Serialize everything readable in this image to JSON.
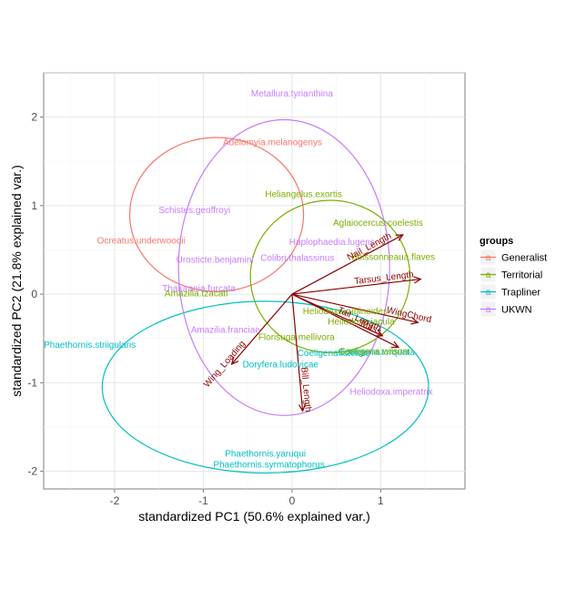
{
  "chart_data": {
    "type": "scatter",
    "subtype": "pca-biplot",
    "title": "",
    "xlabel": "standardized PC1 (50.6% explained var.)",
    "ylabel": "standardized PC2 (21.8% explained var.)",
    "xlim": [
      -2.8,
      1.95
    ],
    "ylim": [
      -2.2,
      2.5
    ],
    "xticks": [
      -2,
      -1,
      0,
      1
    ],
    "yticks": [
      -2,
      -1,
      0,
      1,
      2
    ],
    "grid": true,
    "legend": {
      "title": "groups",
      "position": "right"
    },
    "groups": [
      {
        "name": "Generalist",
        "color": "#f8766d"
      },
      {
        "name": "Territorial",
        "color": "#7cae00"
      },
      {
        "name": "Trapliner",
        "color": "#00bfc4"
      },
      {
        "name": "UKWN",
        "color": "#c77cff"
      }
    ],
    "ellipses": [
      {
        "group": "Generalist",
        "cx": -0.85,
        "cy": 0.9,
        "rx": 0.98,
        "ry": 0.87
      },
      {
        "group": "Territorial",
        "cx": 0.43,
        "cy": 0.2,
        "rx": 0.9,
        "ry": 0.86
      },
      {
        "group": "Trapliner",
        "cx": -0.3,
        "cy": -1.05,
        "rx": 1.84,
        "ry": 0.97
      },
      {
        "group": "UKWN",
        "cx": -0.09,
        "cy": 0.3,
        "rx": 1.19,
        "ry": 1.67
      }
    ],
    "points": [
      {
        "label": "Metallura.tyrianthina",
        "group": "UKWN",
        "x": 0.0,
        "y": 2.27
      },
      {
        "label": "Adelomyia.melanogenys",
        "group": "Generalist",
        "x": -0.22,
        "y": 1.72
      },
      {
        "label": "Heliangelus.exortis",
        "group": "Territorial",
        "x": 0.13,
        "y": 1.13
      },
      {
        "label": "Schistes.geoffroyi",
        "group": "UKWN",
        "x": -1.1,
        "y": 0.95
      },
      {
        "label": "Aglaiocercus.coelestis",
        "group": "Territorial",
        "x": 0.97,
        "y": 0.81
      },
      {
        "label": "Haplophaedia.lugens",
        "group": "UKWN",
        "x": 0.45,
        "y": 0.59
      },
      {
        "label": "Ocreatus.underwoodii",
        "group": "Generalist",
        "x": -1.7,
        "y": 0.61
      },
      {
        "label": "Urosticte.benjamini",
        "group": "UKWN",
        "x": -0.87,
        "y": 0.39
      },
      {
        "label": "Colibri.thalassinus",
        "group": "UKWN",
        "x": 0.06,
        "y": 0.41
      },
      {
        "label": "Boissonneaua.flaves",
        "group": "Territorial",
        "x": 1.14,
        "y": 0.42
      },
      {
        "label": "Thalurania.furcata",
        "group": "UKWN",
        "x": -1.05,
        "y": 0.07
      },
      {
        "label": "Amazilia.tzacatl",
        "group": "Territorial",
        "x": -1.08,
        "y": 0.01
      },
      {
        "label": "Heliodoxa.rubinoides",
        "group": "Territorial",
        "x": 0.6,
        "y": -0.19
      },
      {
        "label": "Heliodoxa.jacula",
        "group": "Territorial",
        "x": 0.78,
        "y": -0.31
      },
      {
        "label": "Amazilia.franciae",
        "group": "UKWN",
        "x": -0.75,
        "y": -0.4
      },
      {
        "label": "Florisuga.mellivora",
        "group": "Territorial",
        "x": 0.05,
        "y": -0.48
      },
      {
        "label": "Phaethornis.striigularis",
        "group": "Trapliner",
        "x": -2.28,
        "y": -0.57
      },
      {
        "label": "Coeligena.lutetiae",
        "group": "Trapliner",
        "x": 0.47,
        "y": -0.66
      },
      {
        "label": "Coeligena.torquata",
        "group": "Trapliner",
        "x": 0.95,
        "y": -0.65
      },
      {
        "label": "Coeligena.wilsoni",
        "group": "Territorial",
        "x": 0.93,
        "y": -0.64
      },
      {
        "label": "Doryfera.ludovicae",
        "group": "Trapliner",
        "x": -0.13,
        "y": -0.79
      },
      {
        "label": "Heliodoxa.imperatrix",
        "group": "UKWN",
        "x": 1.12,
        "y": -1.1
      },
      {
        "label": "Phaethornis.yaruqui",
        "group": "Trapliner",
        "x": -0.3,
        "y": -1.8
      },
      {
        "label": "Phaethornis.syrmatophorus",
        "group": "Trapliner",
        "x": -0.26,
        "y": -1.92
      }
    ],
    "variables": [
      {
        "name": "Nail_Length",
        "x": 1.25,
        "y": 0.67
      },
      {
        "name": "Tarsus_Length",
        "x": 1.45,
        "y": 0.17
      },
      {
        "name": "WingChord",
        "x": 1.42,
        "y": -0.32
      },
      {
        "name": "Tail_Length",
        "x": 1.02,
        "y": -0.47
      },
      {
        "name": "Mass",
        "x": 1.2,
        "y": -0.6
      },
      {
        "name": "Bill_Length",
        "x": 0.12,
        "y": -1.32
      },
      {
        "name": "Wing_Loading",
        "x": -0.68,
        "y": -0.79
      }
    ]
  }
}
